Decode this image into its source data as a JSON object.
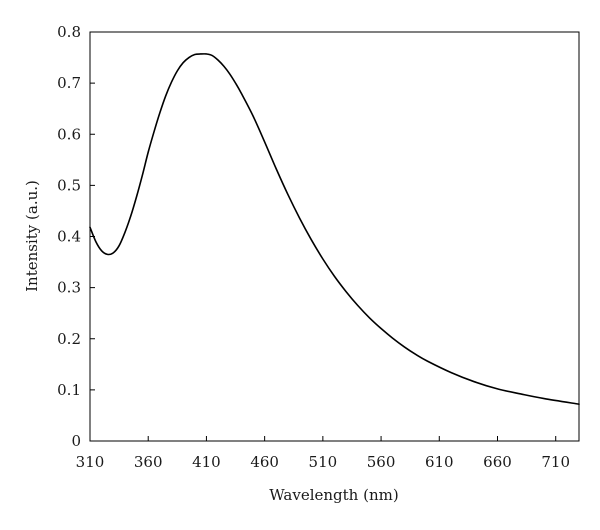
{
  "chart_data": {
    "type": "line",
    "title": "",
    "xlabel": "Wavelength (nm)",
    "ylabel": "Intensity (a.u.)",
    "xlim": [
      310,
      730
    ],
    "ylim": [
      0,
      0.8
    ],
    "xticks": [
      310,
      360,
      410,
      460,
      510,
      560,
      610,
      660,
      710
    ],
    "yticks": [
      0,
      0.1,
      0.2,
      0.3,
      0.4,
      0.5,
      0.6,
      0.7,
      0.8
    ],
    "ytick_labels": [
      "0",
      "0.1",
      "0.2",
      "0.3",
      "0.4",
      "0.5",
      "0.6",
      "0.7",
      "0.8"
    ],
    "grid": false,
    "series": [
      {
        "color": "#000000",
        "x": [
          310,
          315,
          320,
          325,
          330,
          335,
          340,
          345,
          350,
          355,
          360,
          365,
          370,
          375,
          380,
          385,
          390,
          395,
          400,
          405,
          410,
          415,
          420,
          425,
          430,
          435,
          440,
          450,
          460,
          470,
          480,
          490,
          500,
          510,
          520,
          530,
          540,
          550,
          560,
          570,
          580,
          590,
          600,
          620,
          640,
          660,
          680,
          700,
          730
        ],
        "y": [
          0.418,
          0.39,
          0.372,
          0.365,
          0.368,
          0.382,
          0.408,
          0.44,
          0.478,
          0.52,
          0.565,
          0.605,
          0.642,
          0.675,
          0.702,
          0.724,
          0.74,
          0.75,
          0.756,
          0.757,
          0.757,
          0.754,
          0.745,
          0.733,
          0.718,
          0.7,
          0.68,
          0.636,
          0.585,
          0.532,
          0.482,
          0.436,
          0.394,
          0.356,
          0.322,
          0.292,
          0.265,
          0.241,
          0.22,
          0.201,
          0.184,
          0.169,
          0.156,
          0.134,
          0.116,
          0.102,
          0.092,
          0.083,
          0.072
        ]
      }
    ]
  }
}
